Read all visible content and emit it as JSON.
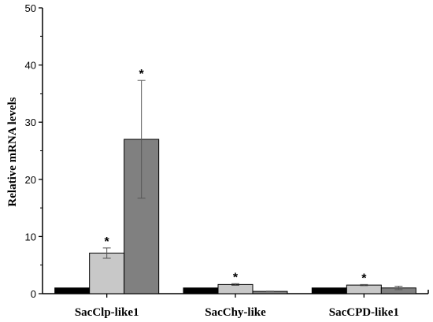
{
  "chart_data": {
    "type": "bar",
    "title": "",
    "xlabel": "",
    "ylabel": "Relative mRNA levels",
    "ylim": [
      0,
      50
    ],
    "yticks": [
      0,
      10,
      20,
      30,
      40,
      50
    ],
    "categories": [
      "SacClp-like1",
      "SacChy-like",
      "SacCPD-like1"
    ],
    "series": [
      {
        "color": "#000000",
        "values": [
          1.0,
          1.0,
          1.0
        ],
        "errors": [
          0,
          0,
          0
        ],
        "significant": [
          false,
          false,
          false
        ]
      },
      {
        "color": "#c8c8c8",
        "values": [
          7.1,
          1.6,
          1.5
        ],
        "errors": [
          0.9,
          0.15,
          0.1
        ],
        "significant": [
          true,
          true,
          true
        ]
      },
      {
        "color": "#808080",
        "values": [
          27.0,
          0.4,
          1.0
        ],
        "errors": [
          10.3,
          0.05,
          0.3
        ],
        "significant": [
          true,
          false,
          false
        ]
      }
    ],
    "significance_marker": "*",
    "grid": false,
    "legend": "none"
  }
}
